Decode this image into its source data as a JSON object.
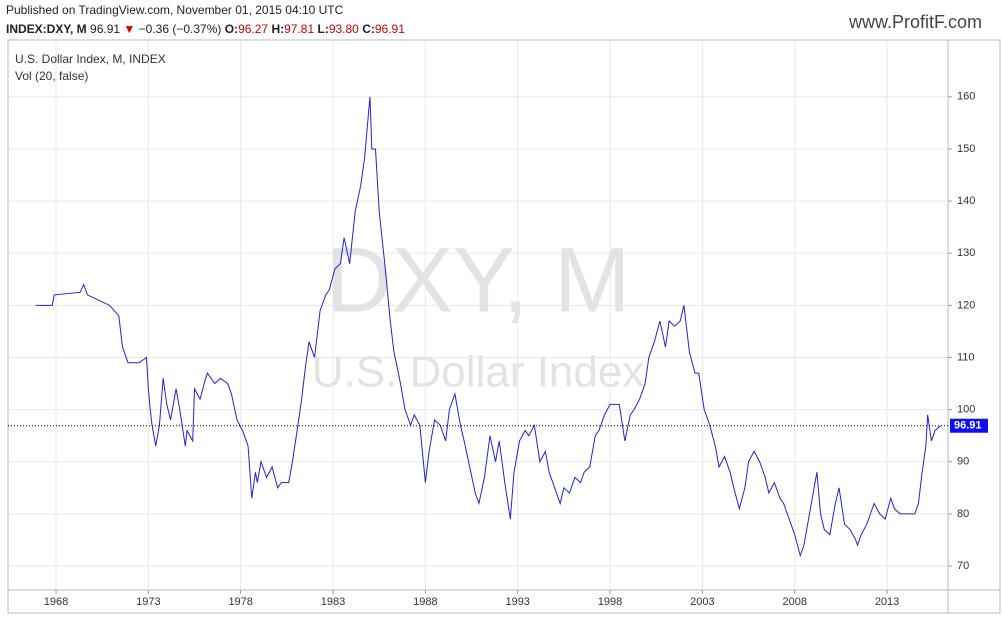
{
  "header": {
    "published": "Published on TradingView.com, November 01, 2015 04:10 UTC",
    "symbol": "INDEX:DXY, M",
    "last": "96.91",
    "arrow": "▼",
    "change": "−0.36 (−0.37%)",
    "open_label": "O:",
    "open": "96.27",
    "high_label": "H:",
    "high": "97.81",
    "low_label": "L:",
    "low": "93.80",
    "close_label": "C:",
    "close": "96.91",
    "logo": "www.ProfitF.com"
  },
  "chart_data": {
    "type": "line",
    "watermark": "DXY, M",
    "watermark_subtitle": "U.S. Dollar Index",
    "indicator": "Vol (20, false)",
    "x": [
      1966.9,
      1967.8,
      1967.9,
      1969.3,
      1969.5,
      1969.7,
      1970.9,
      1971.4,
      1971.6,
      1971.9,
      1972.5,
      1972.9,
      1973.0,
      1973.1,
      1973.2,
      1973.4,
      1973.6,
      1973.8,
      1974.0,
      1974.2,
      1974.5,
      1974.7,
      1975.0,
      1975.1,
      1975.4,
      1975.5,
      1975.8,
      1976.1,
      1976.2,
      1976.6,
      1976.9,
      1977.3,
      1977.5,
      1977.8,
      1978.1,
      1978.4,
      1978.6,
      1978.8,
      1978.9,
      1979.1,
      1979.4,
      1979.7,
      1980.0,
      1980.2,
      1980.6,
      1980.8,
      1981.1,
      1981.3,
      1981.5,
      1981.7,
      1982.0,
      1982.3,
      1982.6,
      1982.8,
      1983.1,
      1983.4,
      1983.6,
      1983.9,
      1984.2,
      1984.5,
      1984.7,
      1985.0,
      1985.1,
      1985.3,
      1985.5,
      1985.8,
      1986.1,
      1986.3,
      1986.6,
      1986.9,
      1987.2,
      1987.4,
      1987.7,
      1988.0,
      1988.2,
      1988.5,
      1988.8,
      1989.1,
      1989.3,
      1989.6,
      1989.9,
      1990.1,
      1990.4,
      1990.7,
      1990.9,
      1991.2,
      1991.5,
      1991.8,
      1992.0,
      1992.3,
      1992.6,
      1992.8,
      1993.1,
      1993.4,
      1993.6,
      1993.9,
      1994.2,
      1994.5,
      1994.7,
      1995.0,
      1995.3,
      1995.5,
      1995.8,
      1996.1,
      1996.4,
      1996.6,
      1996.9,
      1997.2,
      1997.4,
      1997.7,
      1998.0,
      1998.2,
      1998.5,
      1998.8,
      1999.1,
      1999.3,
      1999.6,
      1999.9,
      2000.1,
      2000.4,
      2000.7,
      2001.0,
      2001.2,
      2001.5,
      2001.8,
      2002.0,
      2002.3,
      2002.6,
      2002.8,
      2003.1,
      2003.4,
      2003.7,
      2003.9,
      2004.2,
      2004.5,
      2004.7,
      2005.0,
      2005.3,
      2005.5,
      2005.8,
      2006.1,
      2006.4,
      2006.6,
      2006.9,
      2007.2,
      2007.4,
      2007.7,
      2008.0,
      2008.3,
      2008.5,
      2008.8,
      2009.1,
      2009.2,
      2009.4,
      2009.6,
      2009.9,
      2010.2,
      2010.4,
      2010.7,
      2011.0,
      2011.3,
      2011.4,
      2011.6,
      2011.9,
      2012.1,
      2012.3,
      2012.6,
      2012.9,
      2013.2,
      2013.4,
      2013.7,
      2014.0,
      2014.2,
      2014.5,
      2014.7,
      2014.9,
      2015.1,
      2015.2,
      2015.4,
      2015.6,
      2015.9
    ],
    "series": [
      {
        "name": "U.S. Dollar Index, M, INDEX",
        "color": "#2323d6",
        "values": [
          120,
          120,
          122,
          122.5,
          124,
          122,
          120,
          118,
          112,
          109,
          109,
          110,
          104,
          100,
          97,
          93,
          97,
          106,
          101,
          98,
          104,
          100,
          93,
          96,
          94,
          104,
          102,
          106,
          107,
          105,
          106,
          105,
          103,
          98,
          96,
          93,
          83,
          88,
          86,
          90,
          87,
          89,
          85,
          86,
          86,
          90,
          97,
          102,
          108,
          113,
          110,
          119,
          122,
          123,
          127,
          128,
          133,
          128,
          138,
          143,
          148,
          160,
          150,
          150,
          138,
          128,
          117,
          111,
          106,
          100,
          97,
          99,
          97,
          86,
          92,
          98,
          97,
          94,
          100,
          103,
          97,
          94,
          89,
          84,
          82,
          87,
          95,
          90,
          94,
          86,
          79,
          88,
          94,
          96,
          95,
          97,
          90,
          92,
          88,
          85,
          82,
          85,
          84,
          87,
          86,
          88,
          89,
          95,
          96,
          99,
          101,
          101,
          101,
          94,
          99,
          100,
          102,
          105,
          110,
          113,
          117,
          112,
          117,
          116,
          117,
          120,
          111,
          107,
          107,
          100,
          97,
          93,
          89,
          91,
          88,
          85,
          81,
          85,
          90,
          92,
          90,
          87,
          84,
          86,
          83,
          82,
          79,
          76,
          72,
          74,
          80,
          86,
          88,
          80,
          77,
          76,
          82,
          85,
          78,
          77,
          75,
          74,
          76,
          78,
          80,
          82,
          80,
          79,
          83,
          81,
          80,
          80,
          80,
          80,
          82,
          88,
          93,
          99,
          94,
          96,
          96.91
        ]
      }
    ],
    "xlim": [
      1965.4,
      2016.3
    ],
    "ylim": [
      65.4,
      170.9
    ],
    "xticks": [
      1968,
      1973,
      1978,
      1983,
      1988,
      1993,
      1998,
      2003,
      2008,
      2013
    ],
    "yticks": [
      70,
      80,
      90,
      100,
      110,
      120,
      130,
      140,
      150,
      160
    ],
    "grid": true,
    "price_line": true,
    "price_label_color": "#1010ee"
  }
}
